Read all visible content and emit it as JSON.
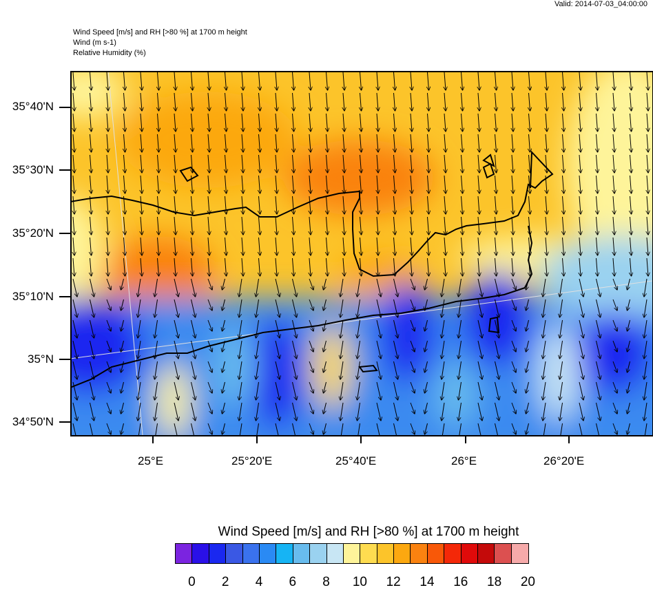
{
  "valid_label": "Valid: 2014-07-03_04:00:00",
  "header": {
    "line1": "Wind Speed [m/s] and RH [>80 %] at 1700 m height",
    "line2": "Wind   (m s-1)",
    "line3": "Relative Humidity   (%)"
  },
  "map": {
    "lat_labels": [
      "35°40'N",
      "35°30'N",
      "35°20'N",
      "35°10'N",
      "35°N",
      "34°50'N"
    ],
    "lon_labels": [
      "25°E",
      "25°20'E",
      "25°40'E",
      "26°E",
      "26°20'E"
    ],
    "wind_direction": "north-to-south (southward arrows)"
  },
  "colorbar": {
    "title": "Wind Speed [m/s] and RH [>80 %] at 1700 m height",
    "labels": [
      "0",
      "2",
      "4",
      "6",
      "8",
      "10",
      "12",
      "14",
      "16",
      "18",
      "20"
    ],
    "colors": [
      "#7b24e0",
      "#2a10e8",
      "#1a28f0",
      "#3a58e4",
      "#3a72ee",
      "#2a8af4",
      "#16b4f4",
      "#68bcee",
      "#9ad2f0",
      "#c8e6f4",
      "#fef49a",
      "#fedc50",
      "#fcc42a",
      "#fca810",
      "#fa8210",
      "#f85808",
      "#f42808",
      "#e00a0a",
      "#c40a0a",
      "#dc5050",
      "#f6aaaa"
    ]
  }
}
